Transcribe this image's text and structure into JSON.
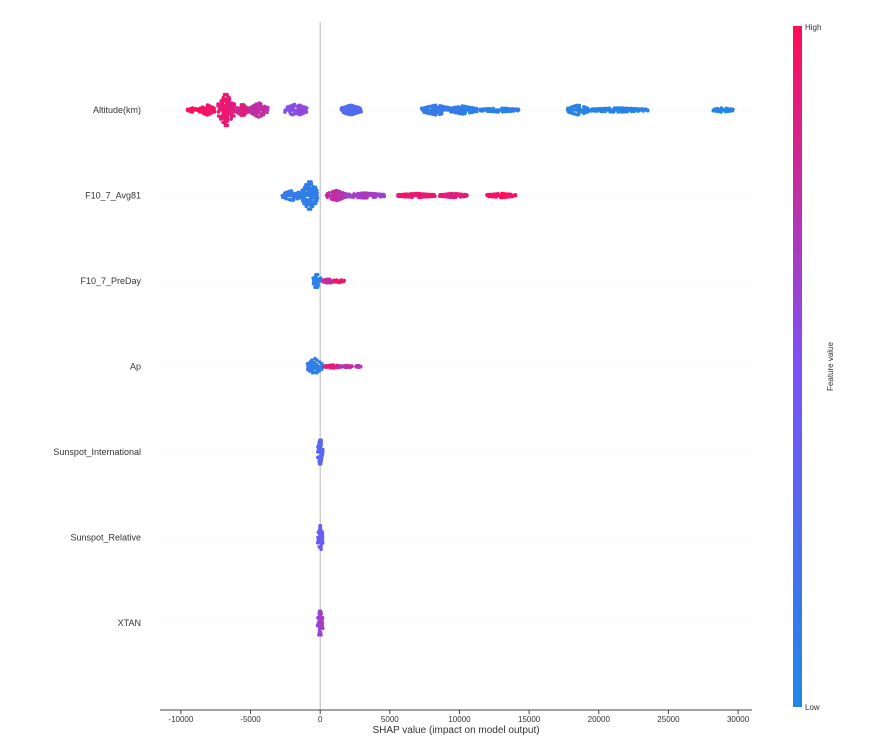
{
  "chart_data": {
    "type": "scatter",
    "subtype": "shap-beeswarm",
    "xlabel": "SHAP value (impact on model output)",
    "xlim": [
      -11500,
      31000
    ],
    "x_ticks": [
      -10000,
      -5000,
      0,
      5000,
      10000,
      15000,
      20000,
      25000,
      30000
    ],
    "x_tick_labels": [
      "-10000",
      "-5000",
      "0",
      "5000",
      "10000",
      "15000",
      "20000",
      "25000",
      "30000"
    ],
    "grid": false,
    "colorbar": {
      "label": "Feature value",
      "high_label": "High",
      "low_label": "Low",
      "low_color": "#1e88e5",
      "high_color": "#ff0d57"
    },
    "features": [
      {
        "name": "Altitude(km)",
        "clusters": [
          {
            "x": [
              -9500,
              -8800
            ],
            "v": 1.0,
            "h": 4
          },
          {
            "x": [
              -8600,
              -7600
            ],
            "v": 0.95,
            "h": 10
          },
          {
            "x": [
              -7300,
              -6200
            ],
            "v": 0.92,
            "h": 34
          },
          {
            "x": [
              -6000,
              -5200
            ],
            "v": 0.85,
            "h": 12
          },
          {
            "x": [
              -5000,
              -3800
            ],
            "v": 0.75,
            "h": 14
          },
          {
            "x": [
              -2500,
              -1000
            ],
            "v": 0.55,
            "h": 12
          },
          {
            "x": [
              1500,
              2900
            ],
            "v": 0.28,
            "h": 10
          },
          {
            "x": [
              7300,
              9400
            ],
            "v": 0.12,
            "h": 10
          },
          {
            "x": [
              9300,
              11200
            ],
            "v": 0.1,
            "h": 8
          },
          {
            "x": [
              11500,
              14200
            ],
            "v": 0.08,
            "h": 4
          },
          {
            "x": [
              17800,
              19200
            ],
            "v": 0.05,
            "h": 10
          },
          {
            "x": [
              19200,
              23500
            ],
            "v": 0.05,
            "h": 4
          },
          {
            "x": [
              28200,
              29600
            ],
            "v": 0.02,
            "h": 4
          }
        ]
      },
      {
        "name": "F10_7_Avg81",
        "clusters": [
          {
            "x": [
              -2700,
              -1300
            ],
            "v": 0.12,
            "h": 10
          },
          {
            "x": [
              -1300,
              -200
            ],
            "v": 0.1,
            "h": 30
          },
          {
            "x": [
              500,
              1800
            ],
            "v": 0.75,
            "h": 10
          },
          {
            "x": [
              1800,
              4600
            ],
            "v": 0.65,
            "h": 5
          },
          {
            "x": [
              5600,
              8200
            ],
            "v": 0.92,
            "h": 4
          },
          {
            "x": [
              8600,
              10500
            ],
            "v": 0.88,
            "h": 4
          },
          {
            "x": [
              12000,
              14000
            ],
            "v": 0.97,
            "h": 4
          }
        ]
      },
      {
        "name": "F10_7_PreDay",
        "clusters": [
          {
            "x": [
              -500,
              0
            ],
            "v": 0.1,
            "h": 16
          },
          {
            "x": [
              200,
              1000
            ],
            "v": 0.8,
            "h": 4
          },
          {
            "x": [
              1000,
              1700
            ],
            "v": 0.95,
            "h": 3
          }
        ]
      },
      {
        "name": "Ap",
        "clusters": [
          {
            "x": [
              -900,
              100
            ],
            "v": 0.1,
            "h": 16
          },
          {
            "x": [
              300,
              1500
            ],
            "v": 0.85,
            "h": 3
          },
          {
            "x": [
              1600,
              2300
            ],
            "v": 0.75,
            "h": 2
          },
          {
            "x": [
              2600,
              2900
            ],
            "v": 0.7,
            "h": 2
          }
        ]
      },
      {
        "name": "Sunspot_International",
        "clusters": [
          {
            "x": [
              -150,
              150
            ],
            "v": 0.3,
            "h": 30
          }
        ]
      },
      {
        "name": "Sunspot_Relative",
        "clusters": [
          {
            "x": [
              -150,
              150
            ],
            "v": 0.4,
            "h": 30
          }
        ]
      },
      {
        "name": "XTAN",
        "clusters": [
          {
            "x": [
              -150,
              150
            ],
            "v": 0.65,
            "h": 30
          }
        ]
      }
    ]
  }
}
